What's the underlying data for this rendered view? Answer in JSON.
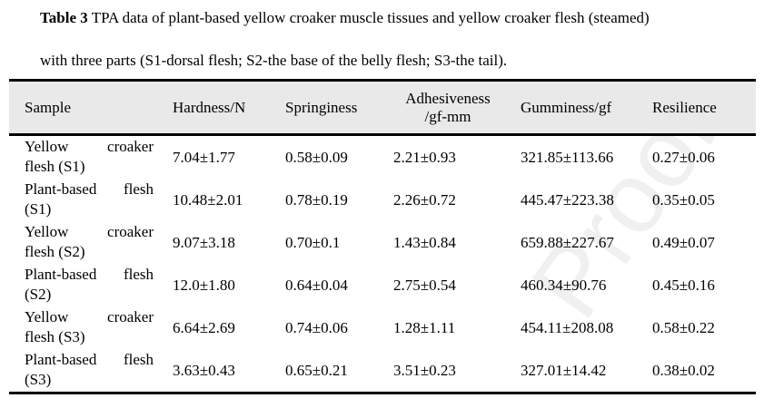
{
  "caption": {
    "label": "Table 3",
    "line1": " TPA data of plant-based yellow croaker muscle tissues and yellow croaker flesh (steamed)",
    "line2": "with three parts (S1-dorsal flesh; S2-the base of the belly flesh; S3-the tail)."
  },
  "watermark": "Proof",
  "table": {
    "headers": [
      "Sample",
      "Hardness/N",
      "Springiness",
      "Adhesiveness",
      "/gf-mm",
      "Gumminess/gf",
      "Resilience"
    ],
    "rows": [
      {
        "s1": "Yellow",
        "s2": "croaker",
        "s3": "flesh (S1)",
        "h": "7.04±1.77",
        "sp": "0.58±0.09",
        "a": "2.21±0.93",
        "g": "321.85±113.66",
        "r": "0.27±0.06"
      },
      {
        "s1": "Plant-based",
        "s2": "flesh",
        "s3": "(S1)",
        "h": "10.48±2.01",
        "sp": "0.78±0.19",
        "a": "2.26±0.72",
        "g": "445.47±223.38",
        "r": "0.35±0.05"
      },
      {
        "s1": "Yellow",
        "s2": "croaker",
        "s3": "flesh (S2)",
        "h": "9.07±3.18",
        "sp": "0.70±0.1",
        "a": "1.43±0.84",
        "g": "659.88±227.67",
        "r": "0.49±0.07"
      },
      {
        "s1": "Plant-based",
        "s2": "flesh",
        "s3": "(S2)",
        "h": "12.0±1.80",
        "sp": "0.64±0.04",
        "a": "2.75±0.54",
        "g": "460.34±90.76",
        "r": "0.45±0.16"
      },
      {
        "s1": "Yellow",
        "s2": "croaker",
        "s3": "flesh (S3)",
        "h": "6.64±2.69",
        "sp": "0.74±0.06",
        "a": "1.28±1.11",
        "g": "454.11±208.08",
        "r": "0.58±0.22"
      },
      {
        "s1": "Plant-based",
        "s2": "flesh",
        "s3": "(S3)",
        "h": "3.63±0.43",
        "sp": "0.65±0.21",
        "a": "3.51±0.23",
        "g": "327.01±14.42",
        "r": "0.38±0.02"
      }
    ]
  }
}
